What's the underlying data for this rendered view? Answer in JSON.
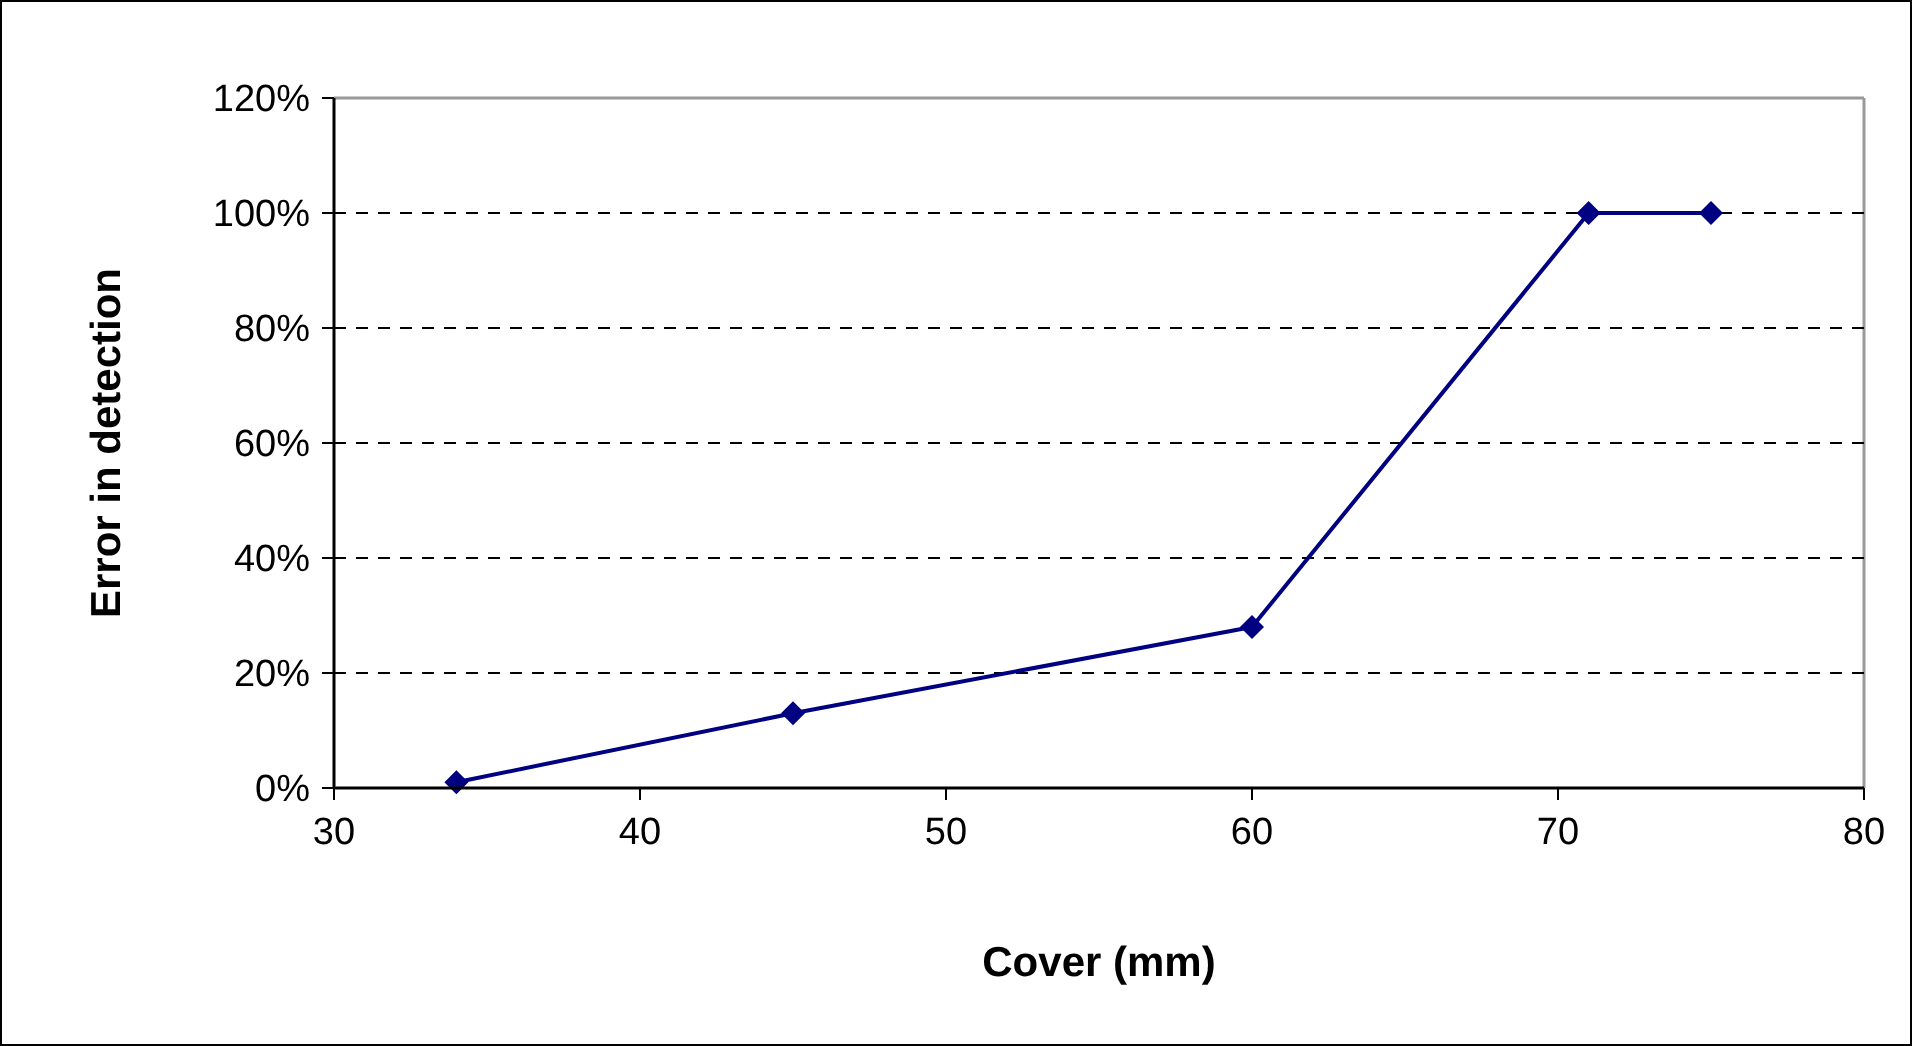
{
  "chart_data": {
    "type": "line",
    "xlabel": "Cover (mm)",
    "ylabel": "Error in detection",
    "x": [
      34,
      45,
      60,
      71,
      75
    ],
    "series": [
      {
        "color": "#000080",
        "values": [
          1,
          13,
          28,
          100,
          100
        ]
      }
    ],
    "xlim": [
      30,
      80
    ],
    "xticks": [
      30,
      40,
      50,
      60,
      70,
      80
    ],
    "ylim": [
      0,
      120
    ],
    "yticks": [
      {
        "value": 0,
        "label": "0%"
      },
      {
        "value": 20,
        "label": "20%"
      },
      {
        "value": 40,
        "label": "40%"
      },
      {
        "value": 60,
        "label": "60%"
      },
      {
        "value": 80,
        "label": "80%"
      },
      {
        "value": 100,
        "label": "100%"
      },
      {
        "value": 120,
        "label": "120%"
      }
    ],
    "grid": "y",
    "marker": "diamond",
    "line_style": "solid"
  }
}
